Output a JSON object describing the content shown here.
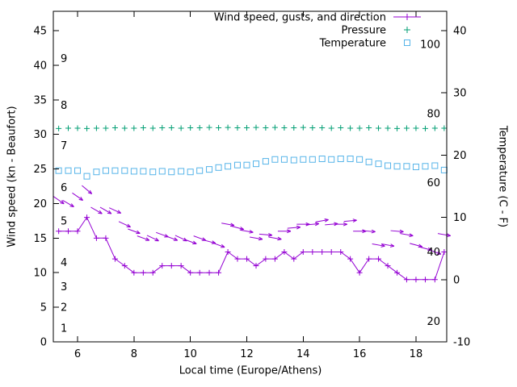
{
  "figure": {
    "background": "#ffffff",
    "x_axis": {
      "label": "Local time (Europe/Athens)",
      "min": 5.14,
      "max": 19.09,
      "ticks": [
        6,
        8,
        10,
        12,
        14,
        16,
        18
      ]
    },
    "y_left": {
      "label": "Wind speed (kn - Beaufort)",
      "min": 0,
      "max": 47.8,
      "ticks": [
        0,
        5,
        10,
        15,
        20,
        25,
        30,
        35,
        40,
        45
      ]
    },
    "y_right": {
      "label": "Temperature (C - F)",
      "min": -10,
      "max": 43.1,
      "ticks": [
        -10,
        0,
        10,
        20,
        30,
        40
      ]
    },
    "beaufort_labels": [
      {
        "text": "1",
        "kn": 2
      },
      {
        "text": "2",
        "kn": 5
      },
      {
        "text": "3",
        "kn": 8
      },
      {
        "text": "4",
        "kn": 11.5
      },
      {
        "text": "5",
        "kn": 17.5
      },
      {
        "text": "6",
        "kn": 22.3
      },
      {
        "text": "7",
        "kn": 28.4
      },
      {
        "text": "8",
        "kn": 34.2
      },
      {
        "text": "9",
        "kn": 41
      }
    ],
    "fahrenheit_labels": [
      {
        "text": "20",
        "f": 20
      },
      {
        "text": "40",
        "f": 40
      },
      {
        "text": "60",
        "f": 60
      },
      {
        "text": "80",
        "f": 80
      },
      {
        "text": "100",
        "f": 100
      }
    ]
  },
  "legend": {
    "entries": [
      {
        "label": "Wind speed, gusts, and direction",
        "series_index": 0
      },
      {
        "label": "Pressure",
        "series_index": 2
      },
      {
        "label": "Temperature",
        "series_index": 3
      }
    ]
  },
  "chart_data": {
    "type": "line",
    "title": "",
    "xlabel": "Local time (Europe/Athens)",
    "ylabel": "Wind speed (kn - Beaufort)",
    "y2label": "Temperature (C - F)",
    "x_range": [
      5.14,
      19.09
    ],
    "y_left_range": [
      0,
      47.8
    ],
    "y_right_range": [
      -10,
      43.1
    ],
    "grid": false,
    "legend_position": "top-right-inside",
    "x_hours": [
      5.33,
      5.67,
      6,
      6.33,
      6.67,
      7,
      7.33,
      7.67,
      8,
      8.33,
      8.67,
      9,
      9.33,
      9.67,
      10,
      10.33,
      10.67,
      11,
      11.33,
      11.67,
      12,
      12.33,
      12.67,
      13,
      13.33,
      13.67,
      14,
      14.33,
      14.67,
      15,
      15.33,
      15.67,
      16,
      16.33,
      16.67,
      17,
      17.33,
      17.67,
      18,
      18.33,
      18.67,
      19
    ],
    "series": [
      {
        "id": "wind-speed",
        "name": "Wind speed",
        "unit": "kn",
        "axis": "left",
        "color": "#9400d3",
        "style": "line+plus",
        "values": [
          16,
          16,
          16,
          18,
          15,
          15,
          12,
          11,
          10,
          10,
          10,
          11,
          11,
          11,
          10,
          10,
          10,
          10,
          13,
          12,
          12,
          11,
          12,
          12,
          13,
          12,
          13,
          13,
          13,
          13,
          13,
          12,
          10,
          12,
          12,
          11,
          10,
          9,
          9,
          9,
          9,
          13
        ]
      },
      {
        "id": "wind-gusts",
        "name": "Wind gusts and direction",
        "unit": "kn",
        "axis": "left",
        "color": "#9400d3",
        "style": "vectors",
        "values": [
          20.5,
          20,
          21,
          22,
          19,
          19,
          19,
          17,
          16,
          15,
          15,
          15.5,
          15,
          15,
          14.5,
          15,
          14.5,
          14,
          17,
          16.5,
          16,
          15,
          15.5,
          15,
          16,
          16.5,
          17,
          17,
          17.5,
          17,
          17,
          17.5,
          16,
          16,
          14,
          14,
          16,
          15.5,
          14,
          13.5,
          13,
          15.5
        ],
        "direction_deg": [
          35,
          30,
          35,
          40,
          30,
          30,
          25,
          25,
          20,
          20,
          25,
          20,
          20,
          25,
          20,
          20,
          15,
          20,
          10,
          15,
          10,
          10,
          5,
          10,
          0,
          -5,
          0,
          -5,
          -10,
          -5,
          0,
          -5,
          0,
          5,
          10,
          10,
          5,
          10,
          15,
          15,
          20,
          10
        ]
      },
      {
        "id": "pressure",
        "name": "Pressure",
        "unit": "inHg",
        "axis": "left",
        "color": "#009e73",
        "style": "plus",
        "values": [
          30.85,
          30.9,
          30.9,
          30.85,
          30.9,
          30.9,
          30.95,
          30.9,
          30.9,
          30.95,
          30.9,
          30.95,
          30.95,
          30.9,
          30.95,
          30.95,
          31.0,
          30.95,
          31.0,
          30.95,
          30.95,
          31.0,
          30.95,
          31.0,
          30.95,
          30.95,
          31.0,
          30.95,
          30.95,
          30.9,
          30.95,
          30.9,
          30.9,
          30.95,
          30.9,
          30.9,
          30.85,
          30.9,
          30.9,
          30.85,
          30.9,
          30.9
        ]
      },
      {
        "id": "temperature",
        "name": "Temperature",
        "unit": "C",
        "axis": "right",
        "color": "#56b4e9",
        "style": "square-open",
        "values": [
          17.5,
          17.5,
          17.5,
          16.6,
          17.3,
          17.5,
          17.5,
          17.5,
          17.4,
          17.4,
          17.3,
          17.4,
          17.3,
          17.4,
          17.3,
          17.5,
          17.7,
          18.0,
          18.2,
          18.4,
          18.4,
          18.6,
          19.0,
          19.3,
          19.3,
          19.2,
          19.3,
          19.3,
          19.4,
          19.3,
          19.4,
          19.4,
          19.3,
          18.9,
          18.6,
          18.3,
          18.2,
          18.2,
          18.1,
          18.2,
          18.3,
          17.6
        ]
      }
    ]
  }
}
